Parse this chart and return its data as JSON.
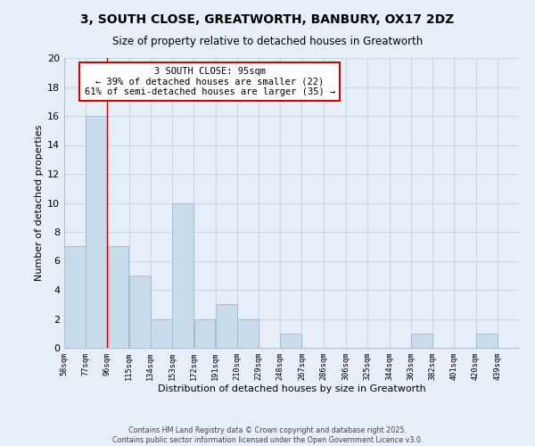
{
  "title": "3, SOUTH CLOSE, GREATWORTH, BANBURY, OX17 2DZ",
  "subtitle": "Size of property relative to detached houses in Greatworth",
  "xlabel": "Distribution of detached houses by size in Greatworth",
  "ylabel": "Number of detached properties",
  "bins": [
    58,
    77,
    96,
    115,
    134,
    153,
    172,
    191,
    210,
    229,
    248,
    267,
    286,
    306,
    325,
    344,
    363,
    382,
    401,
    420,
    439
  ],
  "counts": [
    7,
    16,
    7,
    5,
    2,
    10,
    2,
    3,
    2,
    0,
    1,
    0,
    0,
    0,
    0,
    0,
    1,
    0,
    0,
    1,
    0
  ],
  "bar_color": "#c8dcec",
  "bar_edgecolor": "#9ab8d0",
  "grid_color": "#c8d8ec",
  "property_line_x": 96,
  "property_line_color": "#cc0000",
  "annotation_text": "3 SOUTH CLOSE: 95sqm\n← 39% of detached houses are smaller (22)\n61% of semi-detached houses are larger (35) →",
  "annotation_box_color": "#ffffff",
  "annotation_box_edgecolor": "#cc0000",
  "ylim": [
    0,
    20
  ],
  "yticks": [
    0,
    2,
    4,
    6,
    8,
    10,
    12,
    14,
    16,
    18,
    20
  ],
  "tick_labels": [
    "58sqm",
    "77sqm",
    "96sqm",
    "115sqm",
    "134sqm",
    "153sqm",
    "172sqm",
    "191sqm",
    "210sqm",
    "229sqm",
    "248sqm",
    "267sqm",
    "286sqm",
    "306sqm",
    "325sqm",
    "344sqm",
    "363sqm",
    "382sqm",
    "401sqm",
    "420sqm",
    "439sqm"
  ],
  "footer1": "Contains HM Land Registry data © Crown copyright and database right 2025.",
  "footer2": "Contains public sector information licensed under the Open Government Licence v3.0.",
  "background_color": "#e8eef8"
}
